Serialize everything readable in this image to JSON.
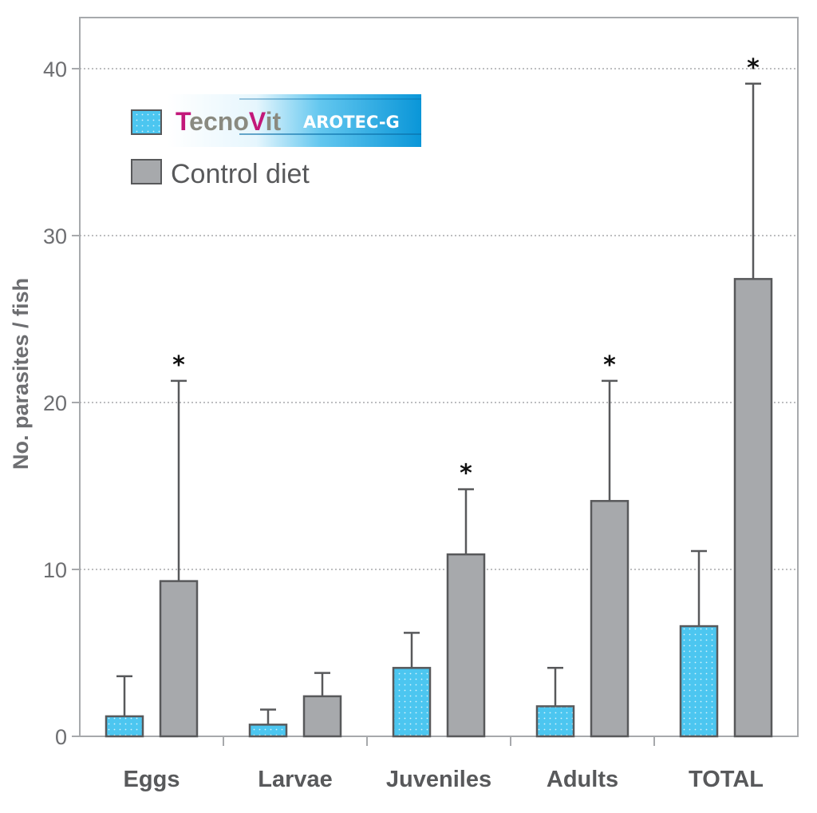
{
  "chart_data": {
    "type": "bar",
    "ylabel": "No. parasites / fish",
    "ylim": [
      0,
      44
    ],
    "yticks": [
      0,
      10,
      20,
      30,
      40
    ],
    "grid": true,
    "legend_position": "top-left",
    "categories": [
      "Eggs",
      "Larvae",
      "Juveniles",
      "Adults",
      "TOTAL"
    ],
    "series": [
      {
        "name": "TecnoVit AROTEC-G",
        "color": "#4cc6f0",
        "values": [
          1.2,
          0.7,
          4.1,
          1.8,
          6.6
        ],
        "error": [
          2.4,
          0.9,
          2.1,
          2.3,
          4.5
        ],
        "significance": [
          "",
          "",
          "",
          "",
          ""
        ]
      },
      {
        "name": "Control diet",
        "color": "#a7a9ac",
        "values": [
          9.3,
          2.4,
          10.9,
          14.1,
          27.4
        ],
        "error": [
          12.0,
          1.4,
          3.9,
          7.2,
          11.7
        ],
        "significance": [
          "*",
          "",
          "*",
          "*",
          "*"
        ]
      }
    ],
    "legend": {
      "brand_tecno": "Tecno",
      "brand_vit": "Vit",
      "brand_product": "AROTEC-G",
      "control_label": "Control diet"
    }
  },
  "colors": {
    "axis": "#a7a9ac",
    "text": "#6d6e71",
    "bar_edge": "#58595b",
    "brand_magenta": "#c2187a",
    "brand_gray": "#8a8a80",
    "brand_blue": "#1aa3df"
  }
}
